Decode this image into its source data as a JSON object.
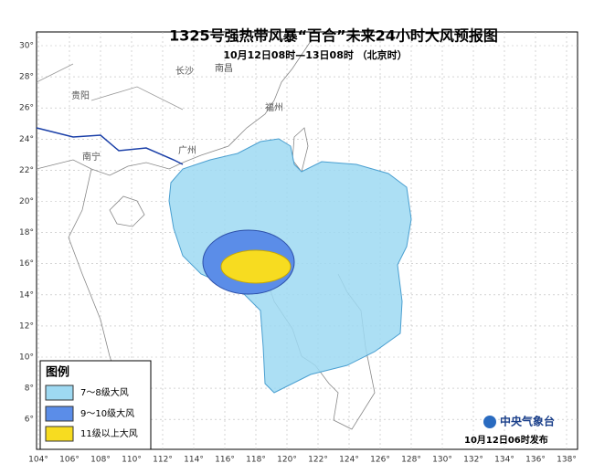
{
  "header": {
    "title": "1325号强热带风暴“百合”未来24小时大风预报图",
    "subtitle": "10月12日08时—13日08时 （北京时）"
  },
  "map": {
    "lon_ticks": [
      "104°",
      "106°",
      "108°",
      "110°",
      "112°",
      "114°",
      "116°",
      "118°",
      "120°",
      "122°",
      "124°",
      "126°",
      "128°",
      "130°",
      "132°",
      "134°",
      "136°",
      "138°"
    ],
    "lat_ticks": [
      "30°",
      "28°",
      "26°",
      "24°",
      "22°",
      "20°",
      "18°",
      "16°",
      "14°",
      "12°",
      "10°",
      "8°",
      "6°"
    ],
    "cities": [
      "贵阳",
      "南宁",
      "长沙",
      "南昌",
      "福州",
      "广州"
    ]
  },
  "legend": {
    "title": "图例",
    "items": [
      "7～8级大风",
      "9～10级大风",
      "11级以上大风"
    ]
  },
  "footer": {
    "agency": "中央气象台",
    "issued": "10月12日06时发布"
  }
}
